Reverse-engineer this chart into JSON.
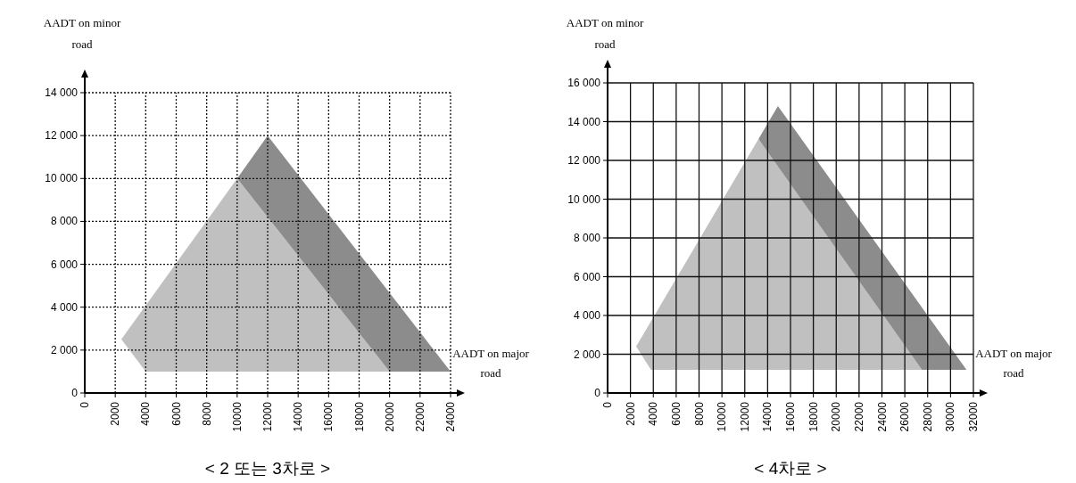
{
  "chart_data": [
    {
      "type": "area",
      "title": "< 2 또는 3차로 >",
      "xlabel": "AADT on major road",
      "ylabel": "AADT on minor road",
      "xlim": [
        0,
        24000
      ],
      "ylim": [
        0,
        14000
      ],
      "xticks": [
        0,
        2000,
        4000,
        6000,
        8000,
        10000,
        12000,
        14000,
        16000,
        18000,
        20000,
        22000,
        24000
      ],
      "yticks": [
        0,
        {
          "value": 2000,
          "label": "2 000"
        },
        {
          "value": 4000,
          "label": "4 000"
        },
        {
          "value": 6000,
          "label": "6 000"
        },
        {
          "value": 8000,
          "label": "8 000"
        },
        {
          "value": 10000,
          "label": "10 000"
        },
        {
          "value": 12000,
          "label": "12 000"
        },
        {
          "value": 14000,
          "label": "14 000"
        }
      ],
      "grid": true,
      "series": [
        {
          "color": "#c0c0c0",
          "x": [
            2400,
            10000,
            20000,
            4000,
            2400
          ],
          "values": [
            2500,
            10000,
            1000,
            1000,
            2500
          ]
        },
        {
          "color": "#8c8c8c",
          "x": [
            10000,
            12000,
            24000,
            20000,
            10000
          ],
          "values": [
            10000,
            12000,
            1000,
            1000,
            10000
          ]
        }
      ]
    },
    {
      "type": "area",
      "title": "< 4차로 >",
      "xlabel": "AADT on major road",
      "ylabel": "AADT on minor road",
      "xlim": [
        0,
        32000
      ],
      "ylim": [
        0,
        16000
      ],
      "xticks": [
        0,
        2000,
        4000,
        6000,
        8000,
        10000,
        12000,
        14000,
        16000,
        18000,
        20000,
        22000,
        24000,
        26000,
        28000,
        30000,
        32000
      ],
      "yticks": [
        0,
        {
          "value": 2000,
          "label": "2 000"
        },
        {
          "value": 4000,
          "label": "4 000"
        },
        {
          "value": 6000,
          "label": "6 000"
        },
        {
          "value": 8000,
          "label": "8 000"
        },
        {
          "value": 10000,
          "label": "10 000"
        },
        {
          "value": 12000,
          "label": "12 000"
        },
        {
          "value": 14000,
          "label": "14 000"
        },
        {
          "value": 16000,
          "label": "16 000"
        }
      ],
      "grid": true,
      "series": [
        {
          "color": "#c0c0c0",
          "x": [
            2500,
            13200,
            27500,
            3800,
            2500
          ],
          "values": [
            2400,
            13100,
            1200,
            1200,
            2400
          ]
        },
        {
          "color": "#8c8c8c",
          "x": [
            13200,
            14900,
            31400,
            27500,
            13200
          ],
          "values": [
            13100,
            14800,
            1200,
            1200,
            13100
          ]
        }
      ]
    }
  ]
}
